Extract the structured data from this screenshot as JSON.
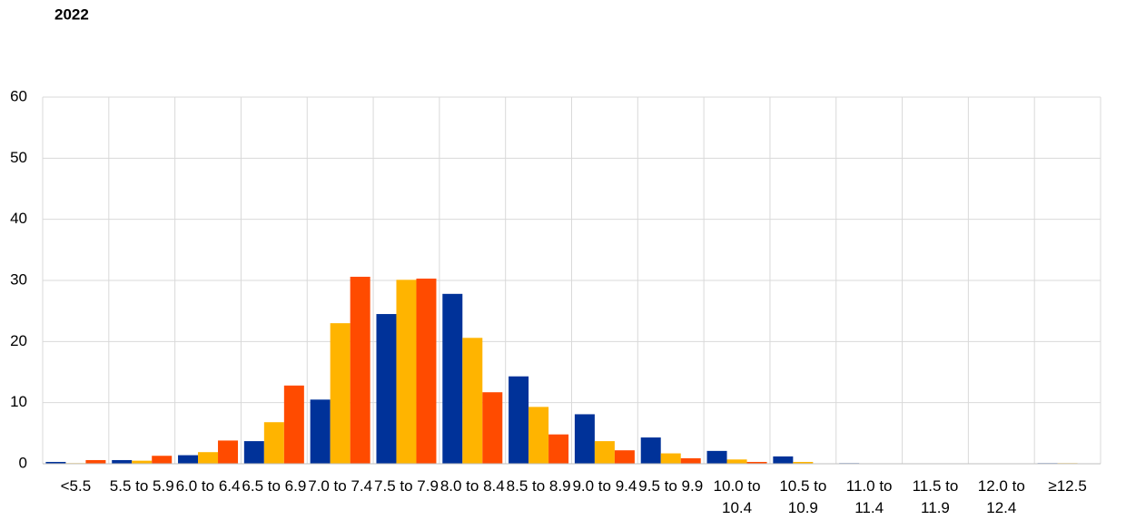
{
  "chart_data": {
    "type": "bar",
    "title": "2022",
    "categories": [
      "<5.5",
      "5.5 to 5.9",
      "6.0 to 6.4",
      "6.5 to 6.9",
      "7.0 to 7.4",
      "7.5 to 7.9",
      "8.0 to 8.4",
      "8.5 to 8.9",
      "9.0 to 9.4",
      "9.5 to 9.9",
      "10.0 to 10.4",
      "10.5 to 10.9",
      "11.0 to 11.4",
      "11.5 to 11.9",
      "12.0 to 12.4",
      "≥12.5"
    ],
    "series": [
      {
        "color": "#003299",
        "values": [
          0.3,
          0.6,
          1.4,
          3.7,
          10.5,
          24.5,
          27.8,
          14.3,
          8.1,
          4.3,
          2.1,
          1.2,
          0.1,
          0.05,
          0.05,
          0.1
        ]
      },
      {
        "color": "#ffb400",
        "values": [
          0.1,
          0.5,
          1.9,
          6.8,
          23,
          30.1,
          20.6,
          9.3,
          3.7,
          1.7,
          0.7,
          0.3,
          0.05,
          0,
          0,
          0.1
        ]
      },
      {
        "color": "#ff4b00",
        "values": [
          0.6,
          1.3,
          3.8,
          12.8,
          30.6,
          30.3,
          11.7,
          4.8,
          2.2,
          0.9,
          0.3,
          0.05,
          0,
          0,
          0,
          0
        ]
      }
    ],
    "ylim": [
      0,
      60
    ],
    "yticks": [
      0,
      10,
      20,
      30,
      40,
      50,
      60
    ],
    "grid": true
  }
}
